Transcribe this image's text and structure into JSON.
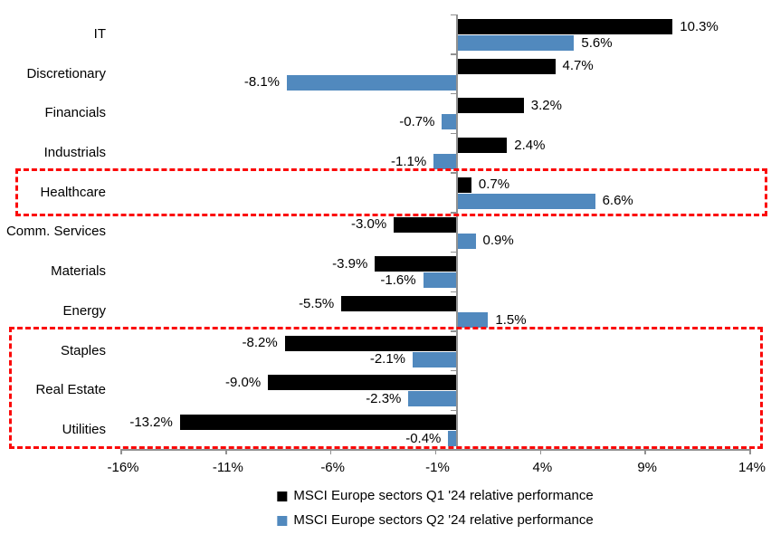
{
  "chart_data": {
    "type": "bar",
    "orientation": "horizontal",
    "title": "",
    "categories": [
      "IT",
      "Discretionary",
      "Financials",
      "Industrials",
      "Healthcare",
      "Comm. Services",
      "Materials",
      "Energy",
      "Staples",
      "Real Estate",
      "Utilities"
    ],
    "series": [
      {
        "name": "MSCI Europe sectors Q1 '24 relative performance",
        "color": "#000000",
        "values": [
          10.3,
          4.7,
          3.2,
          2.4,
          0.7,
          -3.0,
          -3.9,
          -5.5,
          -8.2,
          -9.0,
          -13.2
        ]
      },
      {
        "name": "MSCI Europe sectors Q2 '24 relative performance",
        "color": "#5189BE",
        "values": [
          5.6,
          -8.1,
          -0.7,
          -1.1,
          6.6,
          0.9,
          -1.6,
          1.5,
          -2.1,
          -2.3,
          -0.4
        ]
      }
    ],
    "data_labels": {
      "format": "{value}%",
      "series_0": [
        "10.3%",
        "4.7%",
        "3.2%",
        "2.4%",
        "0.7%",
        "-3.0%",
        "-3.9%",
        "-5.5%",
        "-8.2%",
        "-9.0%",
        "-13.2%"
      ],
      "series_1": [
        "5.6%",
        "-8.1%",
        "-0.7%",
        "-1.1%",
        "6.6%",
        "0.9%",
        "-1.6%",
        "1.5%",
        "-2.1%",
        "-2.3%",
        "-0.4%"
      ]
    },
    "x_axis": {
      "min": -16,
      "max": 14,
      "tick_step": 5,
      "tick_values": [
        -16,
        -11,
        -6,
        -1,
        4,
        9,
        14
      ],
      "tick_labels": [
        "-16%",
        "-11%",
        "-6%",
        "-1%",
        "4%",
        "9%",
        "14%"
      ]
    },
    "grid": false,
    "legend_position": "bottom",
    "highlights": [
      {
        "sectors": [
          "Healthcare"
        ],
        "style": "red-dashed-box"
      },
      {
        "sectors": [
          "Staples",
          "Real Estate",
          "Utilities"
        ],
        "style": "red-dashed-box"
      }
    ],
    "colors": {
      "q1_bar": "#000000",
      "q2_bar": "#5189BE",
      "highlight_box": "#FB0909",
      "axis_line": "#919191",
      "text": "#000000",
      "background": "#FFFFFF"
    }
  }
}
